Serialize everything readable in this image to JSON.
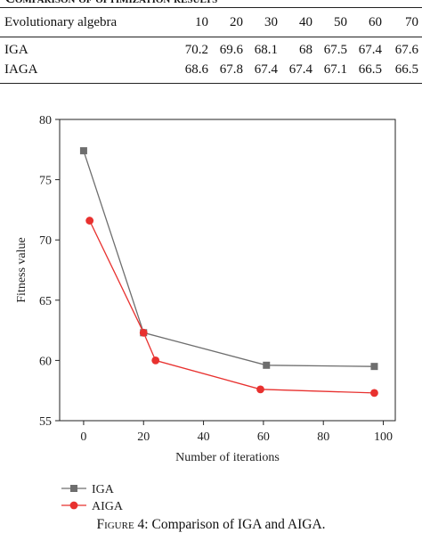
{
  "table": {
    "caption": "Comparison of optimization results",
    "header_label": "Evolutionary algebra",
    "columns": [
      "10",
      "20",
      "30",
      "40",
      "50",
      "60",
      "70"
    ],
    "rows": [
      {
        "label": "IGA",
        "values": [
          "70.2",
          "69.6",
          "68.1",
          "68",
          "67.5",
          "67.4",
          "67.6"
        ]
      },
      {
        "label": "IAGA",
        "values": [
          "68.6",
          "67.8",
          "67.4",
          "67.4",
          "67.1",
          "66.5",
          "66.5"
        ]
      }
    ]
  },
  "chart_data": {
    "type": "line",
    "xlabel": "Number of iterations",
    "ylabel": "Fitness value",
    "xlim": [
      -8,
      104
    ],
    "ylim": [
      55,
      80
    ],
    "xticks": [
      0,
      20,
      40,
      60,
      80,
      100
    ],
    "yticks": [
      55,
      60,
      65,
      70,
      75,
      80
    ],
    "grid": false,
    "legend_position": "bottom-left, below the plot",
    "series": [
      {
        "name": "IGA",
        "color": "#6e6e6e",
        "marker": "square",
        "x": [
          0,
          20,
          61,
          97
        ],
        "y": [
          77.4,
          62.3,
          59.6,
          59.5
        ]
      },
      {
        "name": "AIGA",
        "color": "#e8312f",
        "marker": "circle",
        "x": [
          2,
          20,
          24,
          59,
          97
        ],
        "y": [
          71.6,
          62.3,
          60.0,
          57.6,
          57.3
        ]
      }
    ]
  },
  "figure_caption": {
    "label": "Figure 4:",
    "text": "Comparison of IGA and AIGA."
  }
}
